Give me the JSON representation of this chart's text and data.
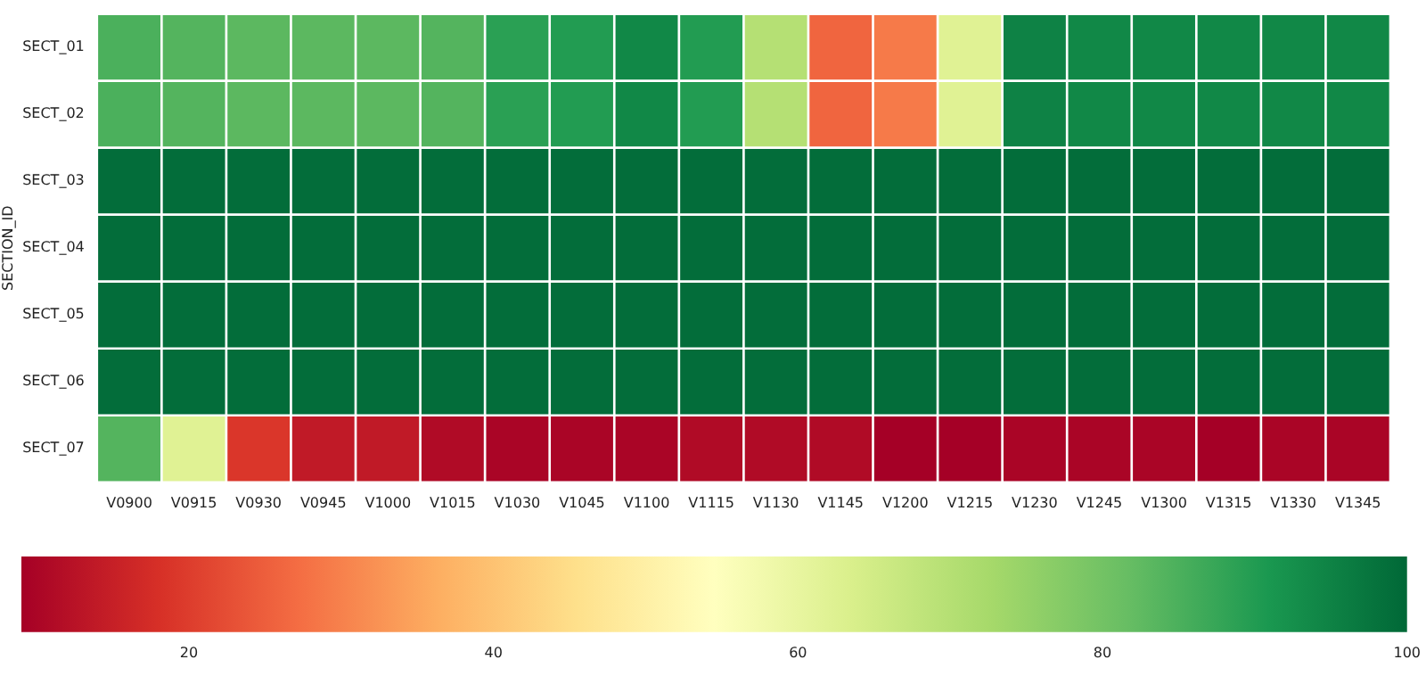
{
  "chart_data": {
    "type": "heatmap",
    "ylabel": "SECTION_ID",
    "categories": [
      "V0900",
      "V0915",
      "V0930",
      "V0945",
      "V1000",
      "V1015",
      "V1030",
      "V1045",
      "V1100",
      "V1115",
      "V1130",
      "V1145",
      "V1200",
      "V1215",
      "V1230",
      "V1245",
      "V1300",
      "V1315",
      "V1330",
      "V1345"
    ],
    "y_categories": [
      "SECT_01",
      "SECT_02",
      "SECT_03",
      "SECT_04",
      "SECT_05",
      "SECT_06",
      "SECT_07"
    ],
    "cells": [
      [
        85,
        84,
        83,
        83,
        83,
        84,
        89,
        90,
        94,
        90,
        70,
        26,
        29,
        62,
        95,
        94,
        94,
        94,
        94,
        94
      ],
      [
        85,
        84,
        83,
        83,
        83,
        84,
        89,
        90,
        94,
        90,
        70,
        26,
        29,
        62,
        95,
        94,
        94,
        94,
        94,
        94
      ],
      [
        99,
        99,
        99,
        99,
        99,
        99,
        99,
        99,
        99,
        99,
        99,
        99,
        99,
        99,
        99,
        99,
        99,
        99,
        99,
        99
      ],
      [
        99,
        99,
        99,
        99,
        99,
        99,
        99,
        99,
        99,
        99,
        99,
        99,
        99,
        99,
        99,
        99,
        99,
        99,
        99,
        99
      ],
      [
        99,
        99,
        99,
        99,
        99,
        99,
        99,
        99,
        99,
        99,
        99,
        99,
        99,
        99,
        99,
        99,
        99,
        99,
        99,
        99
      ],
      [
        99,
        99,
        99,
        99,
        99,
        99,
        99,
        99,
        99,
        99,
        99,
        99,
        99,
        99,
        99,
        99,
        99,
        99,
        99,
        99
      ],
      [
        84,
        62,
        19,
        14,
        14,
        11,
        10,
        10,
        10,
        11,
        11,
        11,
        9,
        9,
        10,
        10,
        10,
        9,
        10,
        10
      ]
    ],
    "clim": [
      9,
      100
    ],
    "cticks": [
      20,
      40,
      60,
      80,
      100
    ]
  }
}
